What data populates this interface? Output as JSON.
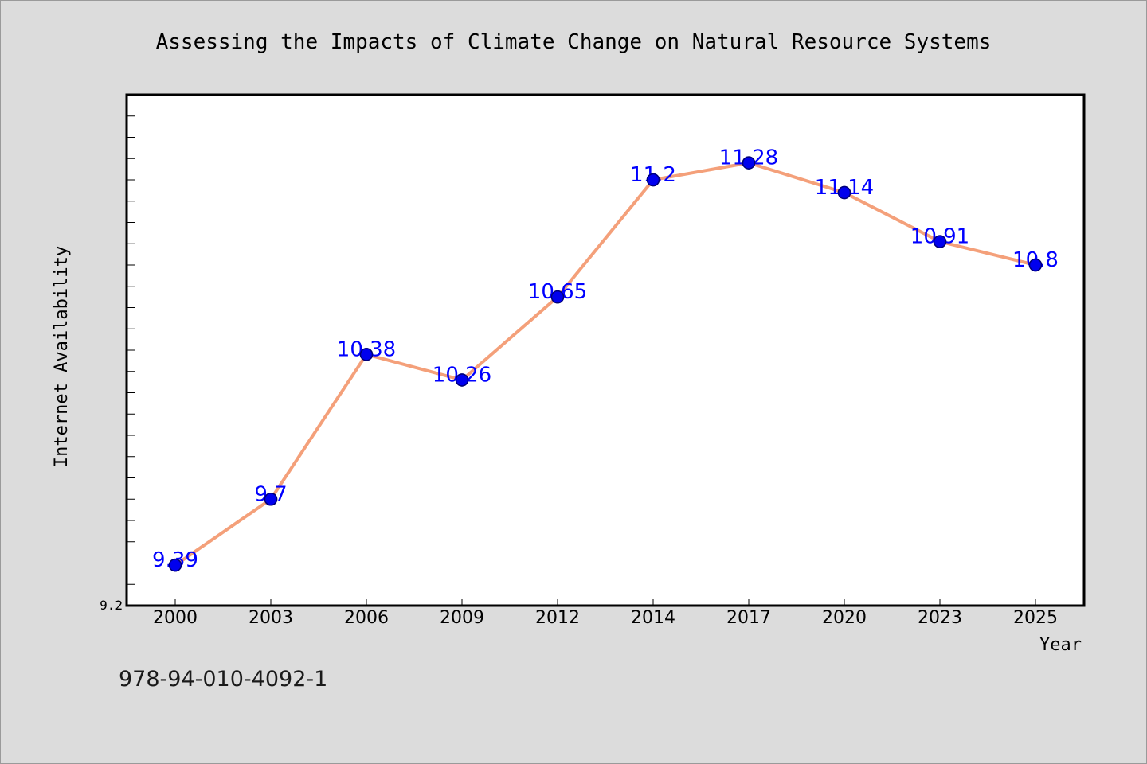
{
  "chart_data": {
    "type": "line",
    "title": "Assessing the Impacts of Climate Change on Natural Resource Systems",
    "xlabel": "Year",
    "ylabel": "Internet Availability",
    "categories": [
      "2000",
      "2003",
      "2006",
      "2009",
      "2012",
      "2014",
      "2017",
      "2020",
      "2023",
      "2025"
    ],
    "values": [
      9.39,
      9.7,
      10.38,
      10.26,
      10.65,
      11.2,
      11.28,
      11.14,
      10.91,
      10.8
    ],
    "data_labels": [
      "9.39",
      "9.7",
      "10.38",
      "10.26",
      "10.65",
      "11.2",
      "11.28",
      "11.14",
      "10.91",
      "10.8"
    ],
    "ylim": [
      9.2,
      11.6
    ],
    "y_tick_labels": [
      "9.2"
    ],
    "grid": false,
    "colors": {
      "line": "#f4a07a",
      "marker_fill": "#0000ee",
      "marker_stroke": "#00007a",
      "data_label": "#0000ff",
      "plot_background": "#ffffff",
      "page_background": "#dcdcdc"
    }
  },
  "footer": {
    "isbn": "978-94-010-4092-1"
  }
}
